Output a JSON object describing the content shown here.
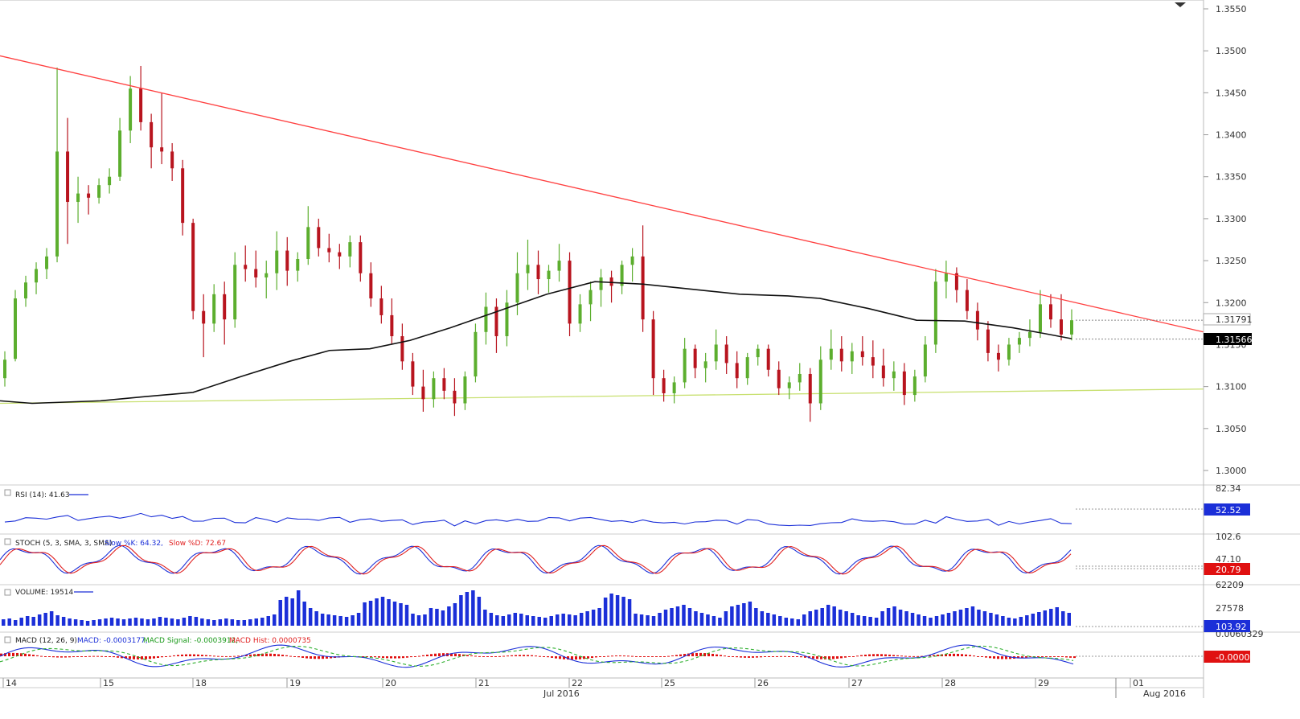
{
  "chart_data": {
    "type": "candlestick",
    "instrument": "",
    "price_axis": {
      "ticks": [
        "1.3550",
        "1.3500",
        "1.3450",
        "1.3400",
        "1.3350",
        "1.3300",
        "1.3250",
        "1.3200",
        "1.3150",
        "1.3100",
        "1.3050",
        "1.3000"
      ],
      "min": 1.2975,
      "max": 1.3565
    },
    "price_tags": {
      "last": "1.31791",
      "ma": "1.31566"
    },
    "date_axis": {
      "ticks": [
        "14",
        "15",
        "18",
        "19",
        "20",
        "21",
        "22",
        "25",
        "26",
        "27",
        "28",
        "29",
        "01"
      ],
      "months": [
        "Jul 2016",
        "Aug 2016"
      ]
    },
    "candles": [
      [
        1.311,
        1.3142,
        1.31,
        1.3132
      ],
      [
        1.3133,
        1.3215,
        1.313,
        1.3205
      ],
      [
        1.3205,
        1.3232,
        1.3195,
        1.3224
      ],
      [
        1.3224,
        1.3248,
        1.321,
        1.324
      ],
      [
        1.324,
        1.3265,
        1.3228,
        1.3255
      ],
      [
        1.3255,
        1.348,
        1.3248,
        1.338
      ],
      [
        1.338,
        1.342,
        1.327,
        1.332
      ],
      [
        1.332,
        1.335,
        1.3295,
        1.333
      ],
      [
        1.333,
        1.334,
        1.3305,
        1.3325
      ],
      [
        1.3325,
        1.3348,
        1.3318,
        1.334
      ],
      [
        1.334,
        1.336,
        1.333,
        1.335
      ],
      [
        1.335,
        1.342,
        1.3345,
        1.3405
      ],
      [
        1.3405,
        1.347,
        1.339,
        1.3455
      ],
      [
        1.3455,
        1.3482,
        1.3405,
        1.3415
      ],
      [
        1.3415,
        1.3425,
        1.336,
        1.3385
      ],
      [
        1.3385,
        1.345,
        1.3365,
        1.338
      ],
      [
        1.338,
        1.339,
        1.3345,
        1.336
      ],
      [
        1.336,
        1.337,
        1.328,
        1.3295
      ],
      [
        1.3295,
        1.33,
        1.318,
        1.319
      ],
      [
        1.319,
        1.321,
        1.3135,
        1.3175
      ],
      [
        1.3175,
        1.3222,
        1.3165,
        1.321
      ],
      [
        1.321,
        1.3225,
        1.315,
        1.318
      ],
      [
        1.318,
        1.326,
        1.317,
        1.3245
      ],
      [
        1.3245,
        1.3268,
        1.3225,
        1.324
      ],
      [
        1.324,
        1.3262,
        1.3218,
        1.323
      ],
      [
        1.323,
        1.325,
        1.3205,
        1.3235
      ],
      [
        1.3235,
        1.3285,
        1.3215,
        1.3262
      ],
      [
        1.3262,
        1.3278,
        1.322,
        1.3238
      ],
      [
        1.3238,
        1.326,
        1.3225,
        1.3252
      ],
      [
        1.3252,
        1.3315,
        1.3245,
        1.329
      ],
      [
        1.329,
        1.33,
        1.3255,
        1.3265
      ],
      [
        1.3265,
        1.3282,
        1.3248,
        1.326
      ],
      [
        1.326,
        1.327,
        1.324,
        1.3255
      ],
      [
        1.3255,
        1.328,
        1.3242,
        1.3272
      ],
      [
        1.3272,
        1.328,
        1.3225,
        1.3235
      ],
      [
        1.3235,
        1.3248,
        1.3195,
        1.3205
      ],
      [
        1.3205,
        1.322,
        1.3175,
        1.3185
      ],
      [
        1.3185,
        1.3205,
        1.315,
        1.316
      ],
      [
        1.316,
        1.3175,
        1.312,
        1.313
      ],
      [
        1.313,
        1.314,
        1.309,
        1.31
      ],
      [
        1.31,
        1.312,
        1.307,
        1.3085
      ],
      [
        1.3085,
        1.3118,
        1.3075,
        1.311
      ],
      [
        1.311,
        1.3122,
        1.3085,
        1.3095
      ],
      [
        1.3095,
        1.311,
        1.3065,
        1.308
      ],
      [
        1.308,
        1.3118,
        1.3072,
        1.3112
      ],
      [
        1.3112,
        1.3175,
        1.3105,
        1.3165
      ],
      [
        1.3165,
        1.3212,
        1.315,
        1.3195
      ],
      [
        1.3195,
        1.3205,
        1.314,
        1.316
      ],
      [
        1.316,
        1.3215,
        1.3148,
        1.32
      ],
      [
        1.32,
        1.326,
        1.3185,
        1.3235
      ],
      [
        1.3235,
        1.3275,
        1.3215,
        1.3245
      ],
      [
        1.3245,
        1.3262,
        1.321,
        1.3228
      ],
      [
        1.3228,
        1.3245,
        1.3212,
        1.3238
      ],
      [
        1.3238,
        1.327,
        1.3225,
        1.325
      ],
      [
        1.325,
        1.326,
        1.316,
        1.3175
      ],
      [
        1.3175,
        1.321,
        1.3165,
        1.3198
      ],
      [
        1.3198,
        1.3225,
        1.3178,
        1.3215
      ],
      [
        1.3215,
        1.324,
        1.3195,
        1.323
      ],
      [
        1.323,
        1.3238,
        1.32,
        1.322
      ],
      [
        1.322,
        1.325,
        1.321,
        1.3245
      ],
      [
        1.3245,
        1.3265,
        1.3225,
        1.3255
      ],
      [
        1.3255,
        1.3292,
        1.3165,
        1.318
      ],
      [
        1.318,
        1.319,
        1.309,
        1.311
      ],
      [
        1.311,
        1.312,
        1.3082,
        1.3092
      ],
      [
        1.3092,
        1.3112,
        1.308,
        1.3105
      ],
      [
        1.3105,
        1.3158,
        1.3098,
        1.3145
      ],
      [
        1.3145,
        1.315,
        1.311,
        1.3122
      ],
      [
        1.3122,
        1.314,
        1.3105,
        1.313
      ],
      [
        1.313,
        1.3168,
        1.312,
        1.315
      ],
      [
        1.315,
        1.316,
        1.3115,
        1.3128
      ],
      [
        1.3128,
        1.3142,
        1.3098,
        1.311
      ],
      [
        1.311,
        1.314,
        1.3102,
        1.3135
      ],
      [
        1.3135,
        1.315,
        1.3125,
        1.3145
      ],
      [
        1.3145,
        1.315,
        1.3112,
        1.312
      ],
      [
        1.312,
        1.313,
        1.309,
        1.3098
      ],
      [
        1.3098,
        1.3112,
        1.3085,
        1.3105
      ],
      [
        1.3105,
        1.3128,
        1.3095,
        1.3115
      ],
      [
        1.3115,
        1.3122,
        1.3058,
        1.308
      ],
      [
        1.308,
        1.3148,
        1.3072,
        1.3132
      ],
      [
        1.3132,
        1.3168,
        1.312,
        1.3145
      ],
      [
        1.3145,
        1.316,
        1.3118,
        1.313
      ],
      [
        1.313,
        1.3152,
        1.3115,
        1.3142
      ],
      [
        1.3142,
        1.316,
        1.3125,
        1.3135
      ],
      [
        1.3135,
        1.3155,
        1.311,
        1.3125
      ],
      [
        1.3125,
        1.3145,
        1.31,
        1.311
      ],
      [
        1.311,
        1.313,
        1.3095,
        1.3118
      ],
      [
        1.3118,
        1.3128,
        1.3078,
        1.309
      ],
      [
        1.309,
        1.312,
        1.3082,
        1.3112
      ],
      [
        1.3112,
        1.316,
        1.3105,
        1.315
      ],
      [
        1.315,
        1.324,
        1.314,
        1.3225
      ],
      [
        1.3225,
        1.325,
        1.3205,
        1.3235
      ],
      [
        1.3235,
        1.3242,
        1.32,
        1.3215
      ],
      [
        1.3215,
        1.3228,
        1.318,
        1.319
      ],
      [
        1.319,
        1.32,
        1.3155,
        1.3168
      ],
      [
        1.3168,
        1.3178,
        1.313,
        1.314
      ],
      [
        1.314,
        1.315,
        1.3118,
        1.3132
      ],
      [
        1.3132,
        1.3158,
        1.3125,
        1.315
      ],
      [
        1.315,
        1.3165,
        1.314,
        1.3158
      ],
      [
        1.3158,
        1.318,
        1.3148,
        1.3165
      ],
      [
        1.3165,
        1.3215,
        1.3158,
        1.3198
      ],
      [
        1.3198,
        1.321,
        1.317,
        1.318
      ],
      [
        1.318,
        1.321,
        1.3155,
        1.3162
      ],
      [
        1.3162,
        1.3192,
        1.3155,
        1.3179
      ]
    ],
    "sma200": [
      [
        0,
        1.3083
      ],
      [
        40,
        1.308
      ],
      [
        125,
        1.3083
      ],
      [
        180,
        1.3088
      ],
      [
        240,
        1.3093
      ],
      [
        300,
        1.3112
      ],
      [
        360,
        1.313
      ],
      [
        410,
        1.3143
      ],
      [
        460,
        1.3145
      ],
      [
        510,
        1.3155
      ],
      [
        560,
        1.317
      ],
      [
        620,
        1.319
      ],
      [
        680,
        1.321
      ],
      [
        740,
        1.3225
      ],
      [
        800,
        1.3222
      ],
      [
        860,
        1.3216
      ],
      [
        920,
        1.321
      ],
      [
        980,
        1.3208
      ],
      [
        1020,
        1.3205
      ],
      [
        1080,
        1.3193
      ],
      [
        1140,
        1.3179
      ],
      [
        1200,
        1.3178
      ],
      [
        1260,
        1.317
      ],
      [
        1300,
        1.3163
      ],
      [
        1333,
        1.3157
      ]
    ],
    "trendline_down": {
      "from": [
        0,
        1.3494
      ],
      "to": [
        1497,
        1.3165
      ]
    },
    "trendline_support": {
      "from": [
        0,
        1.308
      ],
      "to": [
        1497,
        1.3097
      ]
    },
    "indicators": [
      {
        "name": "RSI",
        "label": "RSI (14): 41.63",
        "axis_top": "82.34",
        "tag": "52.52"
      },
      {
        "name": "STOCH",
        "label_parts": [
          "STOCH (5, 3, SMA, 3, SMA)",
          "Slow %K: 64.32,",
          "Slow %D: 72.67"
        ],
        "axis_top": "102.6",
        "axis_mid": "47.10",
        "tag": "20.79"
      },
      {
        "name": "VOLUME",
        "label": "VOLUME: 19514",
        "axis_top": "62209",
        "axis_mid": "27578",
        "tag": "103.92"
      },
      {
        "name": "MACD",
        "label_parts": [
          "MACD (12, 26, 9):",
          "MACD: -0.0003177,",
          "MACD Signal: -0.0003912,",
          "MACD Hist: 0.0000735"
        ],
        "axis_top": "0.0060329",
        "tag": "-0.0000134"
      }
    ],
    "volume": [
      8,
      9,
      7,
      10,
      12,
      11,
      14,
      16,
      18,
      13,
      11,
      9,
      8,
      7,
      6,
      7,
      8,
      9,
      10,
      9,
      8,
      9,
      10,
      9,
      8,
      9,
      11,
      10,
      9,
      8,
      10,
      12,
      11,
      9,
      8,
      7,
      8,
      9,
      8,
      7,
      7,
      8,
      9,
      10,
      12,
      14,
      32,
      36,
      34,
      44,
      30,
      22,
      18,
      15,
      14,
      13,
      12,
      11,
      13,
      16,
      29,
      31,
      34,
      36,
      33,
      30,
      28,
      26,
      15,
      13,
      14,
      22,
      21,
      19,
      24,
      28,
      38,
      42,
      44,
      36,
      20,
      16,
      13,
      12,
      14,
      16,
      15,
      13,
      12,
      11,
      10,
      12,
      14,
      15,
      14,
      13,
      16,
      18,
      20,
      22,
      35,
      40,
      38,
      36,
      33,
      15,
      14,
      13,
      12,
      16,
      20,
      22,
      24,
      26,
      22,
      18,
      16,
      14,
      12,
      10,
      18,
      24,
      26,
      28,
      30,
      22,
      18,
      16,
      14,
      12,
      10,
      9,
      8,
      14,
      18,
      20,
      22,
      26,
      24,
      20,
      18,
      16,
      13,
      12,
      11,
      10,
      18,
      22,
      24,
      20,
      18,
      16,
      14,
      12,
      10,
      12,
      14,
      16,
      18,
      20,
      22,
      24,
      20,
      18,
      16,
      14,
      12,
      10,
      9,
      11,
      13,
      15,
      17,
      19,
      21,
      23,
      18,
      16
    ]
  }
}
